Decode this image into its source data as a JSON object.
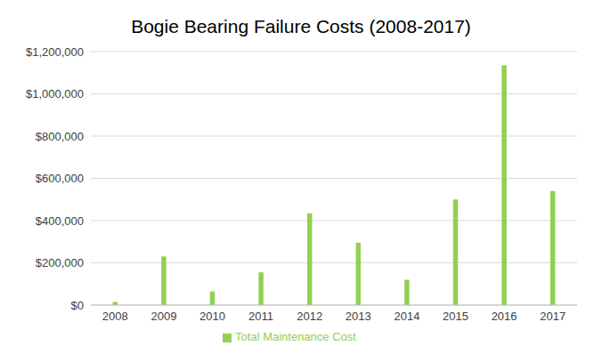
{
  "chart_data": {
    "type": "bar",
    "title": "Bogie Bearing Failure Costs (2008-2017)",
    "categories": [
      "2008",
      "2009",
      "2010",
      "2011",
      "2012",
      "2013",
      "2014",
      "2015",
      "2016",
      "2017"
    ],
    "series": [
      {
        "name": "Total Maintenance Cost",
        "color": "#92d050",
        "values": [
          15000,
          230000,
          65000,
          155000,
          435000,
          295000,
          120000,
          500000,
          1135000,
          540000
        ]
      }
    ],
    "ylim": [
      0,
      1200000
    ],
    "yticks": [
      {
        "value": 0,
        "label": "$0"
      },
      {
        "value": 200000,
        "label": "$200,000"
      },
      {
        "value": 400000,
        "label": "$400,000"
      },
      {
        "value": 600000,
        "label": "$600,000"
      },
      {
        "value": 800000,
        "label": "$800,000"
      },
      {
        "value": 1000000,
        "label": "$1,000,000"
      },
      {
        "value": 1200000,
        "label": "$1,200,000"
      }
    ],
    "grid": true,
    "legend": "bottom"
  }
}
